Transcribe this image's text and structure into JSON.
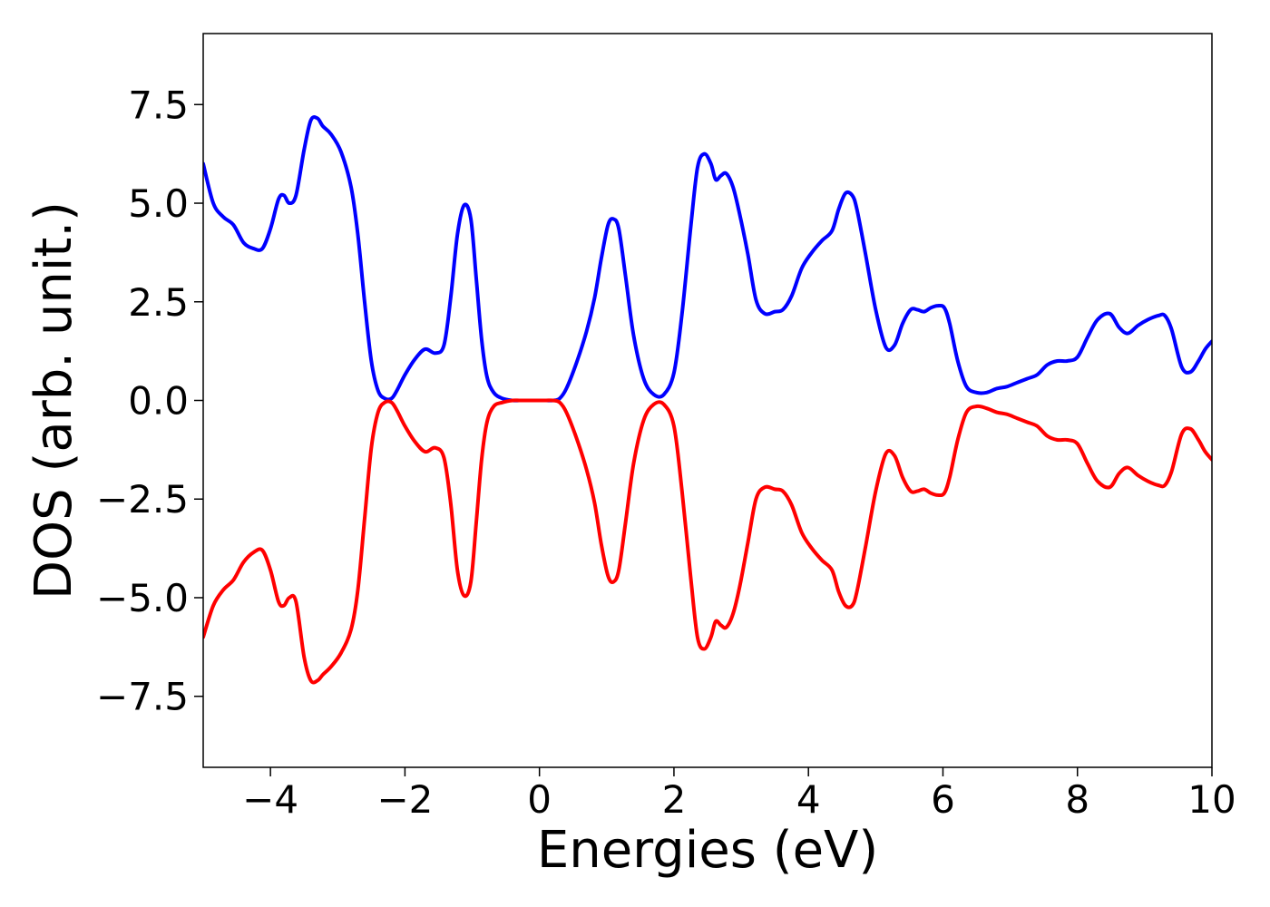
{
  "chart_data": {
    "type": "line",
    "title": "",
    "xlabel": "Energies (eV)",
    "ylabel": "DOS (arb. unit.)",
    "xlim": [
      -5,
      10
    ],
    "ylim": [
      -9.3,
      9.3
    ],
    "grid": false,
    "legend": "none",
    "x_ticks": [
      {
        "value": -4,
        "label": "−4"
      },
      {
        "value": -2,
        "label": "−2"
      },
      {
        "value": 0,
        "label": "0"
      },
      {
        "value": 2,
        "label": "2"
      },
      {
        "value": 4,
        "label": "4"
      },
      {
        "value": 6,
        "label": "6"
      },
      {
        "value": 8,
        "label": "8"
      },
      {
        "value": 10,
        "label": "10"
      }
    ],
    "y_ticks": [
      {
        "value": 7.5,
        "label": "7.5"
      },
      {
        "value": 5.0,
        "label": "5.0"
      },
      {
        "value": 2.5,
        "label": "2.5"
      },
      {
        "value": 0.0,
        "label": "0.0"
      },
      {
        "value": -2.5,
        "label": "−2.5"
      },
      {
        "value": -5.0,
        "label": "−5.0"
      },
      {
        "value": -7.5,
        "label": "−7.5"
      }
    ],
    "series": [
      {
        "color": "#0000ff",
        "x": [
          -5.0,
          -4.85,
          -4.7,
          -4.55,
          -4.4,
          -4.25,
          -4.12,
          -4.0,
          -3.88,
          -3.8,
          -3.72,
          -3.62,
          -3.5,
          -3.4,
          -3.3,
          -3.22,
          -3.1,
          -2.95,
          -2.8,
          -2.7,
          -2.6,
          -2.5,
          -2.4,
          -2.3,
          -2.2,
          -2.12,
          -2.0,
          -1.85,
          -1.7,
          -1.55,
          -1.42,
          -1.32,
          -1.22,
          -1.12,
          -1.02,
          -0.94,
          -0.86,
          -0.78,
          -0.68,
          -0.55,
          -0.4,
          -0.3,
          -0.2,
          -0.1,
          0.0,
          0.1,
          0.2,
          0.3,
          0.4,
          0.55,
          0.7,
          0.82,
          0.92,
          1.02,
          1.1,
          1.18,
          1.28,
          1.4,
          1.55,
          1.7,
          1.85,
          2.0,
          2.12,
          2.25,
          2.35,
          2.45,
          2.55,
          2.62,
          2.7,
          2.78,
          2.88,
          2.98,
          3.1,
          3.22,
          3.35,
          3.5,
          3.62,
          3.75,
          3.9,
          4.05,
          4.2,
          4.35,
          4.45,
          4.55,
          4.65,
          4.72,
          4.85,
          5.0,
          5.15,
          5.28,
          5.4,
          5.52,
          5.62,
          5.72,
          5.82,
          5.92,
          6.02,
          6.1,
          6.22,
          6.35,
          6.5,
          6.65,
          6.8,
          6.95,
          7.1,
          7.25,
          7.4,
          7.55,
          7.7,
          7.85,
          8.0,
          8.15,
          8.3,
          8.48,
          8.62,
          8.75,
          8.9,
          9.05,
          9.2,
          9.3,
          9.4,
          9.55,
          9.68,
          9.8,
          9.9,
          10.0
        ],
        "y": [
          6.0,
          5.0,
          4.65,
          4.45,
          4.0,
          3.85,
          3.85,
          4.35,
          5.1,
          5.2,
          5.0,
          5.2,
          6.35,
          7.1,
          7.15,
          6.95,
          6.75,
          6.3,
          5.4,
          4.2,
          2.5,
          1.0,
          0.25,
          0.05,
          0.05,
          0.25,
          0.65,
          1.05,
          1.3,
          1.2,
          1.4,
          2.6,
          4.2,
          4.95,
          4.6,
          3.1,
          1.55,
          0.6,
          0.2,
          0.05,
          0.0,
          0.0,
          0.0,
          0.0,
          0.0,
          0.0,
          0.0,
          0.05,
          0.3,
          0.95,
          1.75,
          2.6,
          3.6,
          4.45,
          4.6,
          4.35,
          3.15,
          1.65,
          0.55,
          0.15,
          0.15,
          0.7,
          2.2,
          4.4,
          5.9,
          6.25,
          6.0,
          5.6,
          5.7,
          5.75,
          5.4,
          4.7,
          3.7,
          2.55,
          2.2,
          2.25,
          2.3,
          2.65,
          3.35,
          3.75,
          4.05,
          4.3,
          4.85,
          5.25,
          5.2,
          4.85,
          3.7,
          2.3,
          1.35,
          1.4,
          1.95,
          2.3,
          2.3,
          2.25,
          2.35,
          2.4,
          2.35,
          1.95,
          1.0,
          0.35,
          0.2,
          0.2,
          0.3,
          0.35,
          0.45,
          0.55,
          0.65,
          0.9,
          1.0,
          1.0,
          1.1,
          1.6,
          2.05,
          2.2,
          1.85,
          1.7,
          1.9,
          2.05,
          2.15,
          2.15,
          1.8,
          0.85,
          0.72,
          1.0,
          1.3,
          1.5
        ]
      },
      {
        "color": "#ff0000",
        "x": [
          -5.0,
          -4.85,
          -4.7,
          -4.55,
          -4.4,
          -4.25,
          -4.12,
          -4.0,
          -3.88,
          -3.8,
          -3.72,
          -3.62,
          -3.5,
          -3.4,
          -3.3,
          -3.22,
          -3.1,
          -2.95,
          -2.8,
          -2.7,
          -2.6,
          -2.5,
          -2.4,
          -2.3,
          -2.2,
          -2.12,
          -2.0,
          -1.85,
          -1.7,
          -1.55,
          -1.42,
          -1.32,
          -1.22,
          -1.12,
          -1.02,
          -0.94,
          -0.86,
          -0.78,
          -0.68,
          -0.55,
          -0.4,
          -0.3,
          -0.2,
          -0.1,
          0.0,
          0.1,
          0.2,
          0.3,
          0.4,
          0.55,
          0.7,
          0.82,
          0.92,
          1.02,
          1.1,
          1.18,
          1.28,
          1.4,
          1.55,
          1.7,
          1.85,
          2.0,
          2.12,
          2.25,
          2.35,
          2.45,
          2.55,
          2.62,
          2.7,
          2.78,
          2.88,
          2.98,
          3.1,
          3.22,
          3.35,
          3.5,
          3.62,
          3.75,
          3.9,
          4.05,
          4.2,
          4.35,
          4.45,
          4.55,
          4.65,
          4.72,
          4.85,
          5.0,
          5.15,
          5.28,
          5.4,
          5.52,
          5.62,
          5.72,
          5.82,
          5.92,
          6.02,
          6.1,
          6.22,
          6.35,
          6.5,
          6.65,
          6.8,
          6.95,
          7.1,
          7.25,
          7.4,
          7.55,
          7.7,
          7.85,
          8.0,
          8.15,
          8.3,
          8.48,
          8.62,
          8.75,
          8.9,
          9.05,
          9.2,
          9.3,
          9.4,
          9.55,
          9.68,
          9.8,
          9.9,
          10.0
        ],
        "y": [
          -6.0,
          -5.2,
          -4.8,
          -4.55,
          -4.1,
          -3.85,
          -3.8,
          -4.3,
          -5.1,
          -5.2,
          -5.0,
          -5.1,
          -6.5,
          -7.1,
          -7.1,
          -6.95,
          -6.75,
          -6.4,
          -5.8,
          -4.8,
          -3.0,
          -1.2,
          -0.3,
          -0.05,
          -0.05,
          -0.25,
          -0.65,
          -1.05,
          -1.3,
          -1.2,
          -1.45,
          -2.6,
          -4.3,
          -4.95,
          -4.6,
          -3.1,
          -1.5,
          -0.55,
          -0.15,
          -0.05,
          0.0,
          0.0,
          0.0,
          0.0,
          0.0,
          0.0,
          0.0,
          -0.05,
          -0.3,
          -0.95,
          -1.75,
          -2.6,
          -3.65,
          -4.45,
          -4.6,
          -4.3,
          -3.1,
          -1.6,
          -0.5,
          -0.1,
          -0.1,
          -0.65,
          -2.3,
          -4.5,
          -6.0,
          -6.3,
          -6.0,
          -5.6,
          -5.7,
          -5.75,
          -5.4,
          -4.7,
          -3.6,
          -2.5,
          -2.2,
          -2.25,
          -2.3,
          -2.65,
          -3.35,
          -3.75,
          -4.05,
          -4.3,
          -4.85,
          -5.2,
          -5.2,
          -4.85,
          -3.7,
          -2.3,
          -1.35,
          -1.4,
          -1.95,
          -2.3,
          -2.3,
          -2.25,
          -2.35,
          -2.4,
          -2.35,
          -1.95,
          -1.0,
          -0.3,
          -0.15,
          -0.2,
          -0.3,
          -0.35,
          -0.45,
          -0.55,
          -0.65,
          -0.9,
          -1.0,
          -1.0,
          -1.1,
          -1.6,
          -2.05,
          -2.2,
          -1.85,
          -1.7,
          -1.9,
          -2.05,
          -2.15,
          -2.15,
          -1.8,
          -0.85,
          -0.72,
          -1.0,
          -1.3,
          -1.5
        ]
      }
    ]
  }
}
